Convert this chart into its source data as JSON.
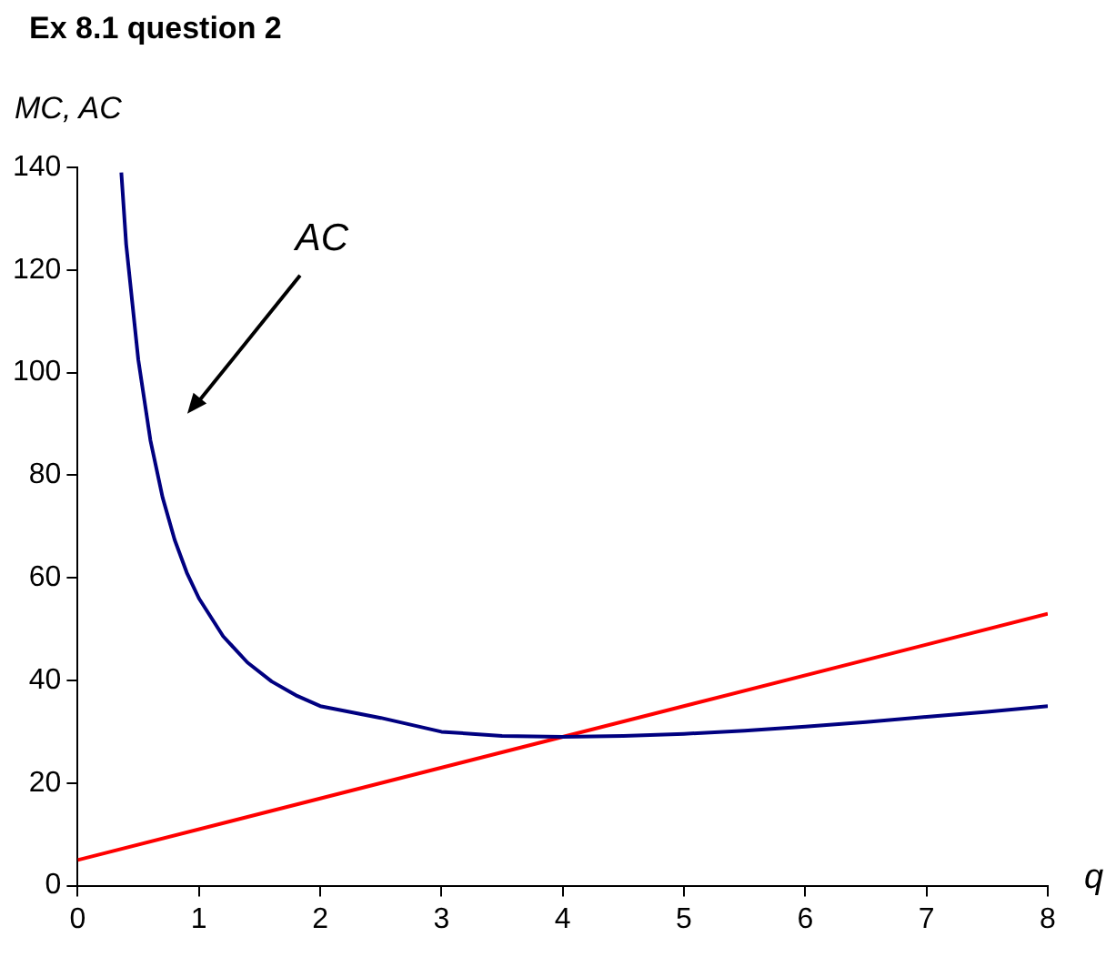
{
  "chart_data": {
    "type": "line",
    "title": "Ex 8.1 question 2",
    "ylabel": "MC, AC",
    "xlabel": "q",
    "xlim": [
      0,
      8
    ],
    "xticks": [
      0,
      1,
      2,
      3,
      4,
      5,
      6,
      7,
      8
    ],
    "ylim": [
      0,
      140
    ],
    "yticks": [
      0,
      20,
      40,
      60,
      80,
      100,
      120,
      140
    ],
    "grid": false,
    "legend": false,
    "marker": "none",
    "line_style": "solid",
    "annotations": [
      "AC"
    ],
    "series": [
      {
        "color": "#000080",
        "x": [
          0.36,
          0.4,
          0.5,
          0.6,
          0.7,
          0.8,
          0.9,
          1,
          1.2,
          1.4,
          1.6,
          1.8,
          2,
          2.5,
          3,
          3.5,
          4,
          4.5,
          5,
          5.5,
          6,
          6.5,
          7,
          7.5,
          8
        ],
        "values": [
          139,
          125,
          102.5,
          86.8,
          75.7,
          67.4,
          61,
          56,
          48.6,
          43.5,
          39.8,
          37.1,
          35,
          32.7,
          30,
          29.2,
          29,
          29.2,
          29.6,
          30.2,
          31,
          31.9,
          32.9,
          33.9,
          35
        ]
      },
      {
        "color": "#ff0000",
        "x": [
          0,
          8
        ],
        "values": [
          5,
          53
        ]
      }
    ]
  }
}
